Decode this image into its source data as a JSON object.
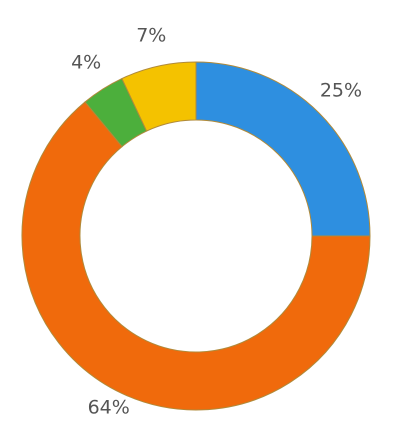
{
  "chart_data": {
    "type": "donut",
    "categories": [
      null,
      null,
      null,
      null
    ],
    "values": [
      25,
      64,
      4,
      7
    ],
    "value_labels": [
      "25%",
      "64%",
      "4%",
      "7%"
    ],
    "colors": [
      "#2e8fe0",
      "#f06a0c",
      "#4caf3c",
      "#f4c200"
    ]
  }
}
